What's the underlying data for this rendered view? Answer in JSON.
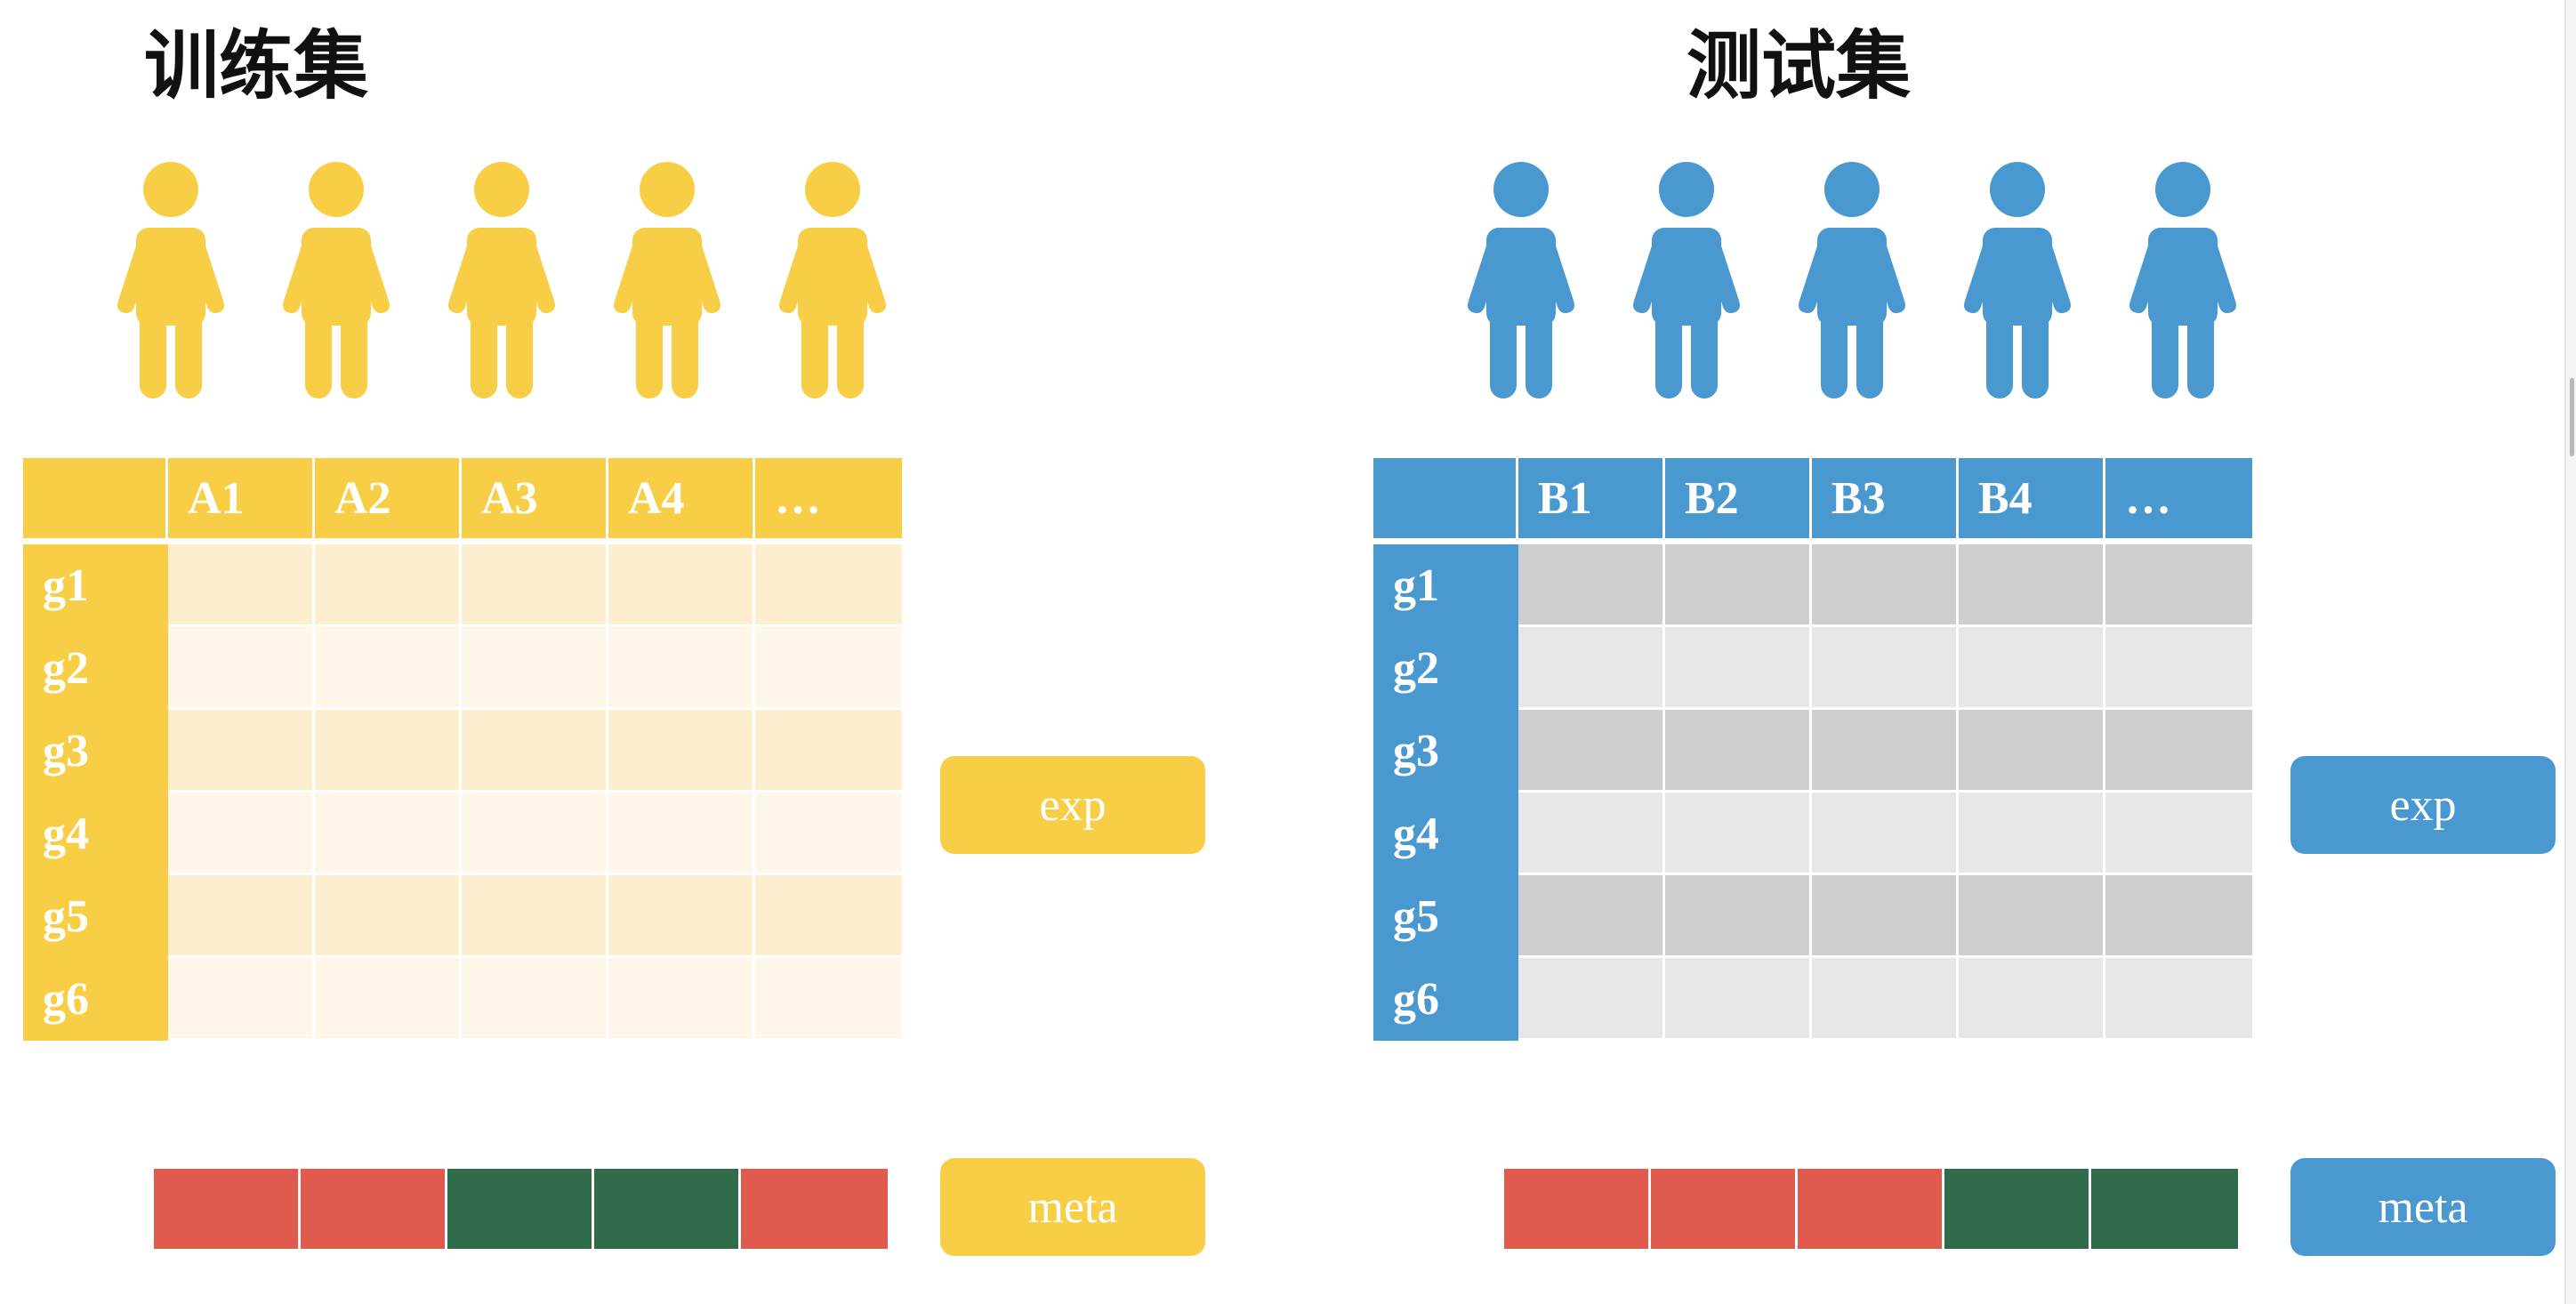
{
  "colors": {
    "train": "#F7CE46",
    "train_cell_dark": "#FCEECF",
    "train_cell_light": "#FDF6E9",
    "test": "#4A98D0",
    "test_cell_dark": "#CDCED1",
    "test_cell_light": "#E7E7E9",
    "meta_red": "#E05A4E",
    "meta_green": "#2F6B4A"
  },
  "panels": [
    {
      "id": "train",
      "title": "训练集",
      "people_count": 5,
      "color_key": "train",
      "cell_colors": [
        "train_cell_dark",
        "train_cell_light"
      ],
      "columns": [
        "A1",
        "A2",
        "A3",
        "A4",
        "…"
      ],
      "rows": [
        "g1",
        "g2",
        "g3",
        "g4",
        "g5",
        "g6"
      ],
      "labels": {
        "exp": "exp",
        "meta": "meta"
      },
      "meta_groups": [
        "red",
        "red",
        "green",
        "green",
        "red"
      ]
    },
    {
      "id": "test",
      "title": "测试集",
      "people_count": 5,
      "color_key": "test",
      "cell_colors": [
        "test_cell_dark",
        "test_cell_light"
      ],
      "columns": [
        "B1",
        "B2",
        "B3",
        "B4",
        "…"
      ],
      "rows": [
        "g1",
        "g2",
        "g3",
        "g4",
        "g5",
        "g6"
      ],
      "labels": {
        "exp": "exp",
        "meta": "meta"
      },
      "meta_groups": [
        "red",
        "red",
        "red",
        "green",
        "green"
      ]
    }
  ]
}
